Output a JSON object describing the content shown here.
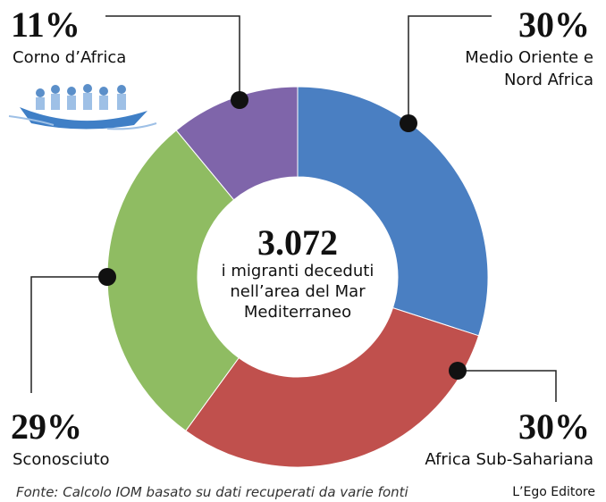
{
  "chart_data": {
    "type": "donut",
    "categories": [
      "Medio Oriente e Nord Africa",
      "Africa Sub-Sahariana",
      "Sconosciuto",
      "Corno d’Africa"
    ],
    "values": [
      30,
      30,
      29,
      11
    ],
    "value_labels": [
      "30%",
      "30%",
      "29%",
      "11%"
    ],
    "colors": [
      "#4a7fc2",
      "#c0504d",
      "#8fbc62",
      "#7f65aa"
    ],
    "center_value": "3.072",
    "center_text": "i migranti deceduti nell’area del Mar Mediterraneo",
    "source": "Fonte: Calcolo IOM basato su dati recuperati da varie fonti",
    "publisher": "L’Ego Editore"
  }
}
